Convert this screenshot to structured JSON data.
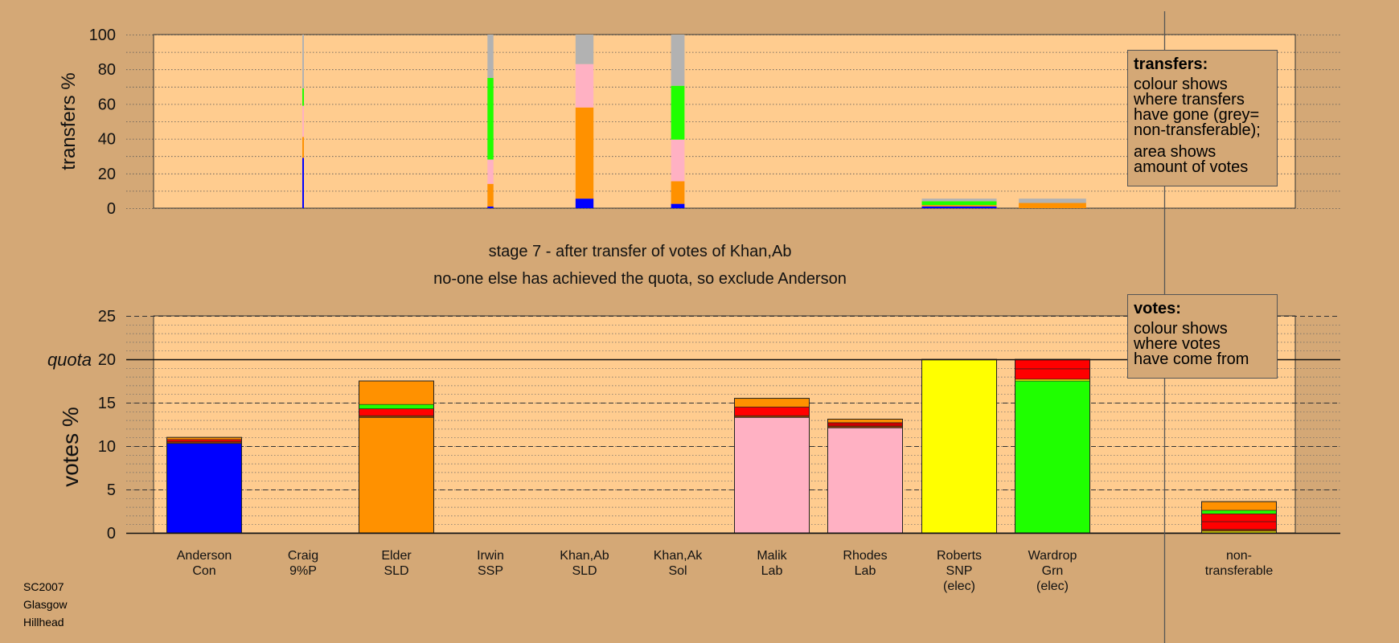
{
  "stage_title": "stage 7 - after transfer of votes of Khan,Ab",
  "stage_subtitle": "no-one else has achieved the quota, so exclude Anderson",
  "footer": {
    "line1": "SC2007",
    "line2": "Glasgow",
    "line3": "Hillhead"
  },
  "legend_transfers": {
    "title": "transfers:",
    "lines": [
      "colour shows",
      "where transfers",
      "have gone (grey=",
      "non-transferable);"
    ],
    "lines2": [
      "area shows",
      "amount of votes"
    ]
  },
  "legend_votes": {
    "title": "votes:",
    "lines": [
      "colour shows",
      "where votes",
      "have come from"
    ]
  },
  "colors": {
    "Con": "#0000ff",
    "9%P": "#d4a876",
    "SLD": "#ff9100",
    "SSP": "#cc0000",
    "Sol": "#ffcc88",
    "Lab": "#ffb1c3",
    "SNP": "#ffff00",
    "Grn": "#1fff00",
    "Red": "#ff0000",
    "Nontransferable": "#b2b2b2",
    "Brown": "#8b3a00",
    "plot_bg": "#ffcc8f",
    "page_bg": "#d4a876"
  },
  "chart_data": [
    {
      "type": "bar",
      "stacked": true,
      "ylabel": "transfers %",
      "ylim": [
        0,
        100
      ],
      "yticks": [
        0,
        20,
        40,
        60,
        80,
        100
      ],
      "grid": true,
      "categories": [
        "Anderson",
        "Craig",
        "Elder",
        "Irwin",
        "Khan,Ab",
        "Khan,Ak",
        "Malik",
        "Rhodes",
        "Roberts",
        "Wardrop"
      ],
      "bars": [
        {
          "candidate": "Craig",
          "width_pct": 2,
          "segments": [
            {
              "party": "Con",
              "value": 29
            },
            {
              "party": "SLD",
              "value": 12
            },
            {
              "party": "Lab",
              "value": 18
            },
            {
              "party": "Grn",
              "value": 10
            },
            {
              "party": "Nontransferable",
              "value": 31
            }
          ]
        },
        {
          "candidate": "Irwin",
          "width_pct": 8,
          "segments": [
            {
              "party": "Con",
              "value": 1
            },
            {
              "party": "SLD",
              "value": 13
            },
            {
              "party": "Lab",
              "value": 14
            },
            {
              "party": "Grn",
              "value": 47
            },
            {
              "party": "Nontransferable",
              "value": 25
            }
          ]
        },
        {
          "candidate": "Khan,Ab",
          "width_pct": 24,
          "segments": [
            {
              "party": "Con",
              "value": 5.5
            },
            {
              "party": "SLD",
              "value": 52.5
            },
            {
              "party": "Lab",
              "value": 25
            },
            {
              "party": "Nontransferable",
              "value": 17
            }
          ]
        },
        {
          "candidate": "Khan,Ak",
          "width_pct": 18,
          "segments": [
            {
              "party": "Con",
              "value": 2.5
            },
            {
              "party": "SLD",
              "value": 13
            },
            {
              "party": "Lab",
              "value": 24
            },
            {
              "party": "Grn",
              "value": 31
            },
            {
              "party": "Nontransferable",
              "value": 29.5
            }
          ]
        },
        {
          "candidate": "Roberts",
          "width_pct": 100,
          "segments": [
            {
              "party": "Con",
              "value": 1
            },
            {
              "party": "SLD",
              "value": 0.8
            },
            {
              "party": "Grn",
              "value": 2.2
            },
            {
              "party": "Nontransferable",
              "value": 1.5
            }
          ]
        },
        {
          "candidate": "Wardrop",
          "width_pct": 90,
          "segments": [
            {
              "party": "SLD",
              "value": 3
            },
            {
              "party": "Nontransferable",
              "value": 2.5
            }
          ]
        }
      ]
    },
    {
      "type": "bar",
      "stacked": true,
      "ylabel": "votes %",
      "ylim": [
        0,
        25
      ],
      "yticks": [
        0,
        5,
        10,
        15,
        20,
        25
      ],
      "quota": 20,
      "quota_label": "quota",
      "grid": true,
      "categories": [
        {
          "name": "Anderson",
          "party": "Con",
          "note": ""
        },
        {
          "name": "Craig",
          "party": "9%P",
          "note": ""
        },
        {
          "name": "Elder",
          "party": "SLD",
          "note": ""
        },
        {
          "name": "Irwin",
          "party": "SSP",
          "note": ""
        },
        {
          "name": "Khan,Ab",
          "party": "SLD",
          "note": ""
        },
        {
          "name": "Khan,Ak",
          "party": "Sol",
          "note": ""
        },
        {
          "name": "Malik",
          "party": "Lab",
          "note": ""
        },
        {
          "name": "Rhodes",
          "party": "Lab",
          "note": ""
        },
        {
          "name": "Roberts",
          "party": "SNP",
          "note": "(elec)"
        },
        {
          "name": "Wardrop",
          "party": "Grn",
          "note": "(elec)"
        }
      ],
      "nontransferable_label": [
        "non-",
        "transferable"
      ],
      "bars": [
        {
          "candidate": "Anderson",
          "segments": [
            {
              "party": "Con",
              "value": 10.3
            },
            {
              "party": "Brown",
              "value": 0.2
            },
            {
              "party": "Red",
              "value": 0.25
            },
            {
              "party": "SLD",
              "value": 0.25
            }
          ]
        },
        {
          "candidate": "Elder",
          "segments": [
            {
              "party": "SLD",
              "value": 13.3
            },
            {
              "party": "Brown",
              "value": 0.2
            },
            {
              "party": "Red",
              "value": 0.8
            },
            {
              "party": "Grn",
              "value": 0.5
            },
            {
              "party": "SLD",
              "value": 2.7
            }
          ]
        },
        {
          "candidate": "Malik",
          "segments": [
            {
              "party": "Lab",
              "value": 13.3
            },
            {
              "party": "Brown",
              "value": 0.2
            },
            {
              "party": "Red",
              "value": 1
            },
            {
              "party": "SLD",
              "value": 1
            }
          ]
        },
        {
          "candidate": "Rhodes",
          "segments": [
            {
              "party": "Lab",
              "value": 12.1
            },
            {
              "party": "Brown",
              "value": 0.2
            },
            {
              "party": "SSP",
              "value": 0.4
            },
            {
              "party": "SLD",
              "value": 0.4
            }
          ]
        },
        {
          "candidate": "Roberts",
          "segments": [
            {
              "party": "SNP",
              "value": 20
            }
          ]
        },
        {
          "candidate": "Wardrop",
          "segments": [
            {
              "party": "Grn",
              "value": 17.5
            },
            {
              "party": "SNP",
              "value": 0.2
            },
            {
              "party": "Red",
              "value": 1.2
            },
            {
              "party": "Red",
              "value": 1.1
            }
          ]
        },
        {
          "candidate": "nontransferable",
          "segments": [
            {
              "party": "SNP",
              "value": 0.2
            },
            {
              "party": "Brown",
              "value": 0.2
            },
            {
              "party": "Red",
              "value": 0.9
            },
            {
              "party": "Red",
              "value": 0.9
            },
            {
              "party": "Grn",
              "value": 0.4
            },
            {
              "party": "SLD",
              "value": 1
            }
          ]
        }
      ]
    }
  ]
}
